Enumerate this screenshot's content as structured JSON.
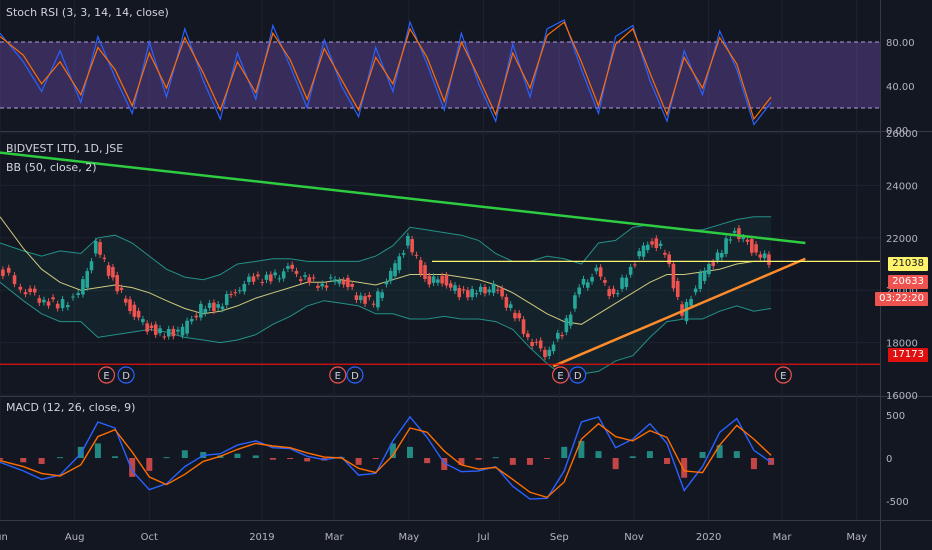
{
  "panels": {
    "rsi": {
      "title": "Stoch RSI (3, 3, 14, 14, close)"
    },
    "price": {
      "title": "BIDVEST LTD, 1D, JSE",
      "subtitle": "BB (50, close, 2)"
    },
    "macd": {
      "title": "MACD (12, 26, close, 9)"
    }
  },
  "badges": {
    "last_price": {
      "value": "21038",
      "color": "#fff36b"
    },
    "current": {
      "value": "20633",
      "color": "#ef5350"
    },
    "countdown": {
      "value": "03:22:20",
      "color": "#ef5350"
    },
    "support": {
      "value": "17173",
      "color": "#e01010"
    }
  },
  "events": [
    {
      "letter": "E",
      "date": "2018-08-27"
    },
    {
      "letter": "D",
      "date": "2018-09-12"
    },
    {
      "letter": "E",
      "date": "2019-03-04"
    },
    {
      "letter": "D",
      "date": "2019-03-18"
    },
    {
      "letter": "E",
      "date": "2019-09-02"
    },
    {
      "letter": "D",
      "date": "2019-09-16"
    },
    {
      "letter": "E",
      "date": "2020-03-02"
    }
  ],
  "chart_data": [
    {
      "type": "line",
      "panel": "stoch_rsi",
      "title": "Stoch RSI (3, 3, 14, 14, close)",
      "ylim": [
        0,
        100
      ],
      "yticks": [
        "0.00",
        "40.00",
        "80.00"
      ],
      "band": [
        20,
        80
      ],
      "series": [
        {
          "role": "K",
          "color": "#2962ff",
          "x": [
            "2018-06-01",
            "2018-06-20",
            "2018-07-05",
            "2018-07-20",
            "2018-08-06",
            "2018-08-20",
            "2018-09-03",
            "2018-09-17",
            "2018-10-01",
            "2018-10-15",
            "2018-10-30",
            "2018-11-14",
            "2018-11-28",
            "2018-12-12",
            "2018-12-27",
            "2019-01-10",
            "2019-01-24",
            "2019-02-07",
            "2019-02-21",
            "2019-03-07",
            "2019-03-21",
            "2019-04-04",
            "2019-04-18",
            "2019-05-02",
            "2019-05-16",
            "2019-05-30",
            "2019-06-13",
            "2019-06-27",
            "2019-07-11",
            "2019-07-25",
            "2019-08-08",
            "2019-08-22",
            "2019-09-05",
            "2019-09-19",
            "2019-10-03",
            "2019-10-17",
            "2019-10-31",
            "2019-11-14",
            "2019-11-28",
            "2019-12-12",
            "2019-12-27",
            "2020-01-10",
            "2020-01-24",
            "2020-02-07",
            "2020-02-21"
          ],
          "values": [
            88,
            62,
            35,
            72,
            25,
            85,
            48,
            15,
            80,
            30,
            92,
            45,
            10,
            70,
            28,
            95,
            58,
            20,
            82,
            40,
            12,
            75,
            35,
            98,
            60,
            18,
            88,
            42,
            8,
            78,
            30,
            92,
            100,
            55,
            15,
            85,
            95,
            45,
            8,
            72,
            32,
            90,
            55,
            5,
            25
          ]
        },
        {
          "role": "D",
          "color": "#ff6d00",
          "x": [
            "2018-06-01",
            "2018-06-20",
            "2018-07-05",
            "2018-07-20",
            "2018-08-06",
            "2018-08-20",
            "2018-09-03",
            "2018-09-17",
            "2018-10-01",
            "2018-10-15",
            "2018-10-30",
            "2018-11-14",
            "2018-11-28",
            "2018-12-12",
            "2018-12-27",
            "2019-01-10",
            "2019-01-24",
            "2019-02-07",
            "2019-02-21",
            "2019-03-07",
            "2019-03-21",
            "2019-04-04",
            "2019-04-18",
            "2019-05-02",
            "2019-05-16",
            "2019-05-30",
            "2019-06-13",
            "2019-06-27",
            "2019-07-11",
            "2019-07-25",
            "2019-08-08",
            "2019-08-22",
            "2019-09-05",
            "2019-09-19",
            "2019-10-03",
            "2019-10-17",
            "2019-10-31",
            "2019-11-14",
            "2019-11-28",
            "2019-12-12",
            "2019-12-27",
            "2020-01-10",
            "2020-01-24",
            "2020-02-07",
            "2020-02-21"
          ],
          "values": [
            85,
            68,
            42,
            62,
            32,
            75,
            55,
            22,
            70,
            38,
            84,
            52,
            18,
            62,
            34,
            88,
            64,
            28,
            74,
            46,
            18,
            66,
            42,
            92,
            66,
            26,
            80,
            48,
            14,
            70,
            38,
            86,
            98,
            62,
            22,
            78,
            92,
            52,
            14,
            66,
            38,
            84,
            60,
            10,
            30
          ]
        }
      ]
    },
    {
      "type": "line",
      "panel": "price",
      "title": "BIDVEST LTD, 1D, JSE",
      "subtitle": "BB (50, close, 2)",
      "ylim": [
        16000,
        26000
      ],
      "yticks": [
        "16000",
        "18000",
        "20000",
        "22000",
        "24000",
        "26000"
      ],
      "xticks": [
        "Jun",
        "Aug",
        "Oct",
        "2019",
        "Mar",
        "May",
        "Jul",
        "Sep",
        "Nov",
        "2020",
        "Mar",
        "May"
      ],
      "xlim": [
        "2018-06-01",
        "2020-05-20"
      ],
      "x": [
        "2018-06-01",
        "2018-06-20",
        "2018-07-05",
        "2018-07-20",
        "2018-08-06",
        "2018-08-20",
        "2018-09-03",
        "2018-09-17",
        "2018-10-01",
        "2018-10-15",
        "2018-10-30",
        "2018-11-14",
        "2018-11-28",
        "2018-12-12",
        "2018-12-27",
        "2019-01-10",
        "2019-01-24",
        "2019-02-07",
        "2019-02-21",
        "2019-03-07",
        "2019-03-21",
        "2019-04-04",
        "2019-04-18",
        "2019-05-02",
        "2019-05-16",
        "2019-05-30",
        "2019-06-13",
        "2019-06-27",
        "2019-07-11",
        "2019-07-25",
        "2019-08-08",
        "2019-08-22",
        "2019-09-05",
        "2019-09-19",
        "2019-10-03",
        "2019-10-17",
        "2019-10-31",
        "2019-11-14",
        "2019-11-28",
        "2019-12-12",
        "2019-12-27",
        "2020-01-10",
        "2020-01-24",
        "2020-02-07",
        "2020-02-21"
      ],
      "close": [
        20900,
        20100,
        19700,
        19400,
        19800,
        21700,
        20400,
        19300,
        18600,
        18300,
        18500,
        19300,
        19400,
        20000,
        20500,
        20400,
        20800,
        20400,
        20200,
        20500,
        19800,
        19500,
        20600,
        21900,
        20400,
        20400,
        19900,
        19900,
        20100,
        19300,
        18200,
        17600,
        18400,
        20100,
        20700,
        19700,
        20900,
        21900,
        21500,
        19000,
        20500,
        21300,
        22300,
        21600,
        21100
      ],
      "series": [
        {
          "name": "",
          "role": "bb_upper",
          "color": "#26a69a",
          "values": [
            21800,
            21500,
            21300,
            21500,
            21400,
            22000,
            22100,
            21800,
            21300,
            20800,
            20500,
            20400,
            20600,
            21000,
            21100,
            21200,
            21200,
            21100,
            21100,
            21100,
            21100,
            21300,
            21700,
            22400,
            22300,
            22200,
            22100,
            21900,
            21400,
            21100,
            21100,
            21300,
            21200,
            21000,
            21800,
            21900,
            22400,
            22500,
            22400,
            22300,
            22300,
            22500,
            22700,
            22800,
            22800
          ]
        },
        {
          "name": "",
          "role": "bb_basis",
          "color": "#f0e68c",
          "values": [
            22800,
            21600,
            20800,
            20300,
            20000,
            20100,
            20200,
            20100,
            19900,
            19600,
            19300,
            19100,
            19200,
            19400,
            19700,
            19900,
            20100,
            20300,
            20300,
            20400,
            20300,
            20200,
            20400,
            20600,
            20600,
            20600,
            20500,
            20400,
            20200,
            19900,
            19500,
            19100,
            18800,
            18700,
            19100,
            19500,
            19900,
            20300,
            20600,
            20600,
            20700,
            20800,
            21000,
            21100,
            21100
          ]
        },
        {
          "name": "",
          "role": "bb_lower",
          "color": "#26a69a",
          "values": [
            20300,
            19600,
            19100,
            18800,
            18800,
            18200,
            18300,
            18400,
            18500,
            18400,
            18200,
            18100,
            18000,
            18100,
            18300,
            18700,
            19000,
            19400,
            19600,
            19500,
            19400,
            19100,
            19100,
            18900,
            18900,
            19000,
            18900,
            18900,
            18800,
            18500,
            17800,
            17200,
            16700,
            16800,
            16900,
            17300,
            17500,
            18200,
            18800,
            18900,
            18900,
            19200,
            19400,
            19200,
            19300
          ]
        }
      ],
      "trendlines": [
        {
          "color": "#2ecc40",
          "from": [
            "2018-06-01",
            25250
          ],
          "to": [
            "2020-03-20",
            21800
          ]
        },
        {
          "color": "#ff8c2a",
          "from": [
            "2019-08-27",
            17100
          ],
          "to": [
            "2020-03-20",
            21200
          ]
        },
        {
          "color": "#fff36b",
          "from": [
            "2019-05-20",
            21100
          ],
          "to": [
            "2020-05-20",
            21100
          ]
        },
        {
          "color": "#e01010",
          "from": [
            "2018-06-01",
            17173
          ],
          "to": [
            "2020-05-20",
            17173
          ]
        }
      ]
    },
    {
      "type": "bar",
      "panel": "macd",
      "title": "MACD (12, 26, close, 9)",
      "ylim": [
        -700,
        700
      ],
      "yticks": [
        "-500",
        "0",
        "500"
      ],
      "x": [
        "2018-06-01",
        "2018-06-20",
        "2018-07-05",
        "2018-07-20",
        "2018-08-06",
        "2018-08-20",
        "2018-09-03",
        "2018-09-17",
        "2018-10-01",
        "2018-10-15",
        "2018-10-30",
        "2018-11-14",
        "2018-11-28",
        "2018-12-12",
        "2018-12-27",
        "2019-01-10",
        "2019-01-24",
        "2019-02-07",
        "2019-02-21",
        "2019-03-07",
        "2019-03-21",
        "2019-04-04",
        "2019-04-18",
        "2019-05-02",
        "2019-05-16",
        "2019-05-30",
        "2019-06-13",
        "2019-06-27",
        "2019-07-11",
        "2019-07-25",
        "2019-08-08",
        "2019-08-22",
        "2019-09-05",
        "2019-09-19",
        "2019-10-03",
        "2019-10-17",
        "2019-10-31",
        "2019-11-14",
        "2019-11-28",
        "2019-12-12",
        "2019-12-27",
        "2020-01-10",
        "2020-01-24",
        "2020-02-07",
        "2020-02-21"
      ],
      "series": [
        {
          "role": "macd",
          "color": "#2962ff",
          "values": [
            -50,
            -150,
            -250,
            -200,
            50,
            420,
            350,
            -150,
            -370,
            -300,
            -100,
            30,
            50,
            150,
            200,
            120,
            110,
            20,
            -20,
            10,
            -200,
            -180,
            200,
            480,
            240,
            -60,
            -160,
            -150,
            -100,
            -330,
            -480,
            -470,
            -150,
            420,
            480,
            120,
            220,
            400,
            170,
            -380,
            -100,
            300,
            460,
            90,
            -50
          ]
        },
        {
          "role": "signal",
          "color": "#ff6d00",
          "values": [
            -30,
            -100,
            -180,
            -210,
            -80,
            250,
            330,
            70,
            -220,
            -310,
            -190,
            -40,
            20,
            100,
            170,
            140,
            120,
            60,
            10,
            0,
            -120,
            -170,
            30,
            350,
            300,
            80,
            -80,
            -130,
            -110,
            -250,
            -400,
            -460,
            -280,
            220,
            400,
            250,
            200,
            320,
            240,
            -150,
            -170,
            150,
            380,
            220,
            30
          ]
        },
        {
          "role": "histogram",
          "color": "#26a69a",
          "values": [
            -20,
            -50,
            -70,
            10,
            130,
            170,
            20,
            -220,
            -150,
            10,
            90,
            70,
            30,
            50,
            30,
            -20,
            -10,
            -40,
            -30,
            10,
            -80,
            -10,
            170,
            130,
            -60,
            -140,
            -80,
            -20,
            10,
            -80,
            -80,
            -10,
            130,
            200,
            80,
            -130,
            20,
            80,
            -70,
            -230,
            70,
            150,
            80,
            -130,
            -80
          ]
        }
      ]
    }
  ]
}
